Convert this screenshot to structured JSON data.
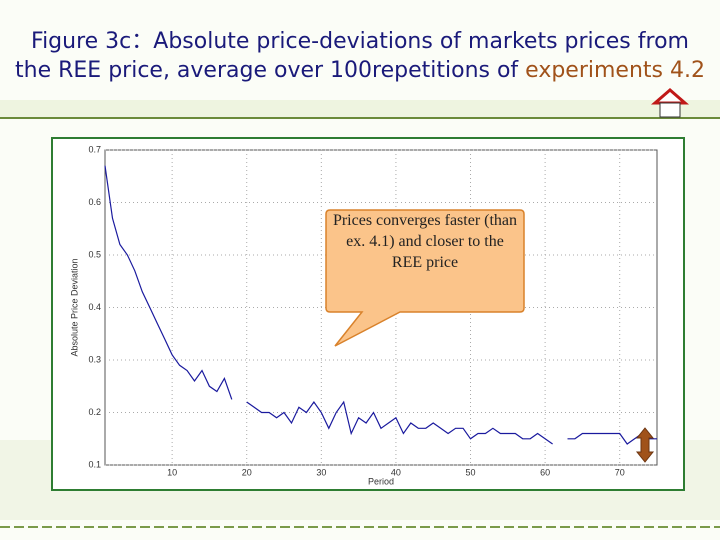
{
  "chart_data": {
    "type": "line",
    "title": {
      "line1": "Figure 3c：Absolute price-deviations of markets  prices from",
      "line2": "the REE price, average over 100repetitions of",
      "line2_highlight": "experiments 4.2"
    },
    "x_label": "Period",
    "y_label": "Absolute Price Deviation",
    "annotation": "Prices converges faster (than ex. 4.1) and closer to the REE price",
    "x": [
      1,
      2,
      3,
      4,
      5,
      6,
      7,
      8,
      9,
      10,
      11,
      12,
      13,
      14,
      15,
      16,
      17,
      18,
      19,
      20,
      21,
      22,
      23,
      24,
      25,
      26,
      27,
      28,
      29,
      30,
      31,
      32,
      33,
      34,
      35,
      36,
      37,
      38,
      39,
      40,
      41,
      42,
      43,
      44,
      45,
      46,
      47,
      48,
      49,
      50,
      51,
      52,
      53,
      54,
      55,
      56,
      57,
      58,
      59,
      60,
      61,
      62,
      63,
      64,
      65,
      66,
      67,
      68,
      69,
      70,
      71,
      72,
      73,
      74,
      75
    ],
    "values": [
      0.67,
      0.57,
      0.52,
      0.5,
      0.47,
      0.43,
      0.4,
      0.37,
      0.34,
      0.31,
      0.29,
      0.28,
      0.26,
      0.28,
      0.25,
      0.24,
      0.265,
      0.225,
      null,
      0.22,
      0.21,
      0.2,
      0.2,
      0.19,
      0.2,
      0.18,
      0.21,
      0.2,
      0.22,
      0.2,
      0.17,
      0.2,
      0.22,
      0.16,
      0.19,
      0.18,
      0.2,
      0.17,
      0.18,
      0.19,
      0.16,
      0.18,
      0.17,
      0.17,
      0.18,
      0.17,
      0.16,
      0.17,
      0.17,
      0.15,
      0.16,
      0.16,
      0.17,
      0.16,
      0.16,
      0.16,
      0.15,
      0.15,
      0.16,
      0.15,
      0.14,
      null,
      0.15,
      0.15,
      0.16,
      0.16,
      0.16,
      0.16,
      0.16,
      0.16,
      0.14,
      0.15,
      0.16,
      0.15,
      0.15
    ],
    "color": "#1a1a9e",
    "xlim": [
      1,
      75
    ],
    "ylim": [
      0.1,
      0.7
    ],
    "xticks": [
      10,
      20,
      30,
      40,
      50,
      60,
      70
    ],
    "yticks": [
      0.1,
      0.2,
      0.3,
      0.4,
      0.5,
      0.6,
      0.7
    ]
  }
}
